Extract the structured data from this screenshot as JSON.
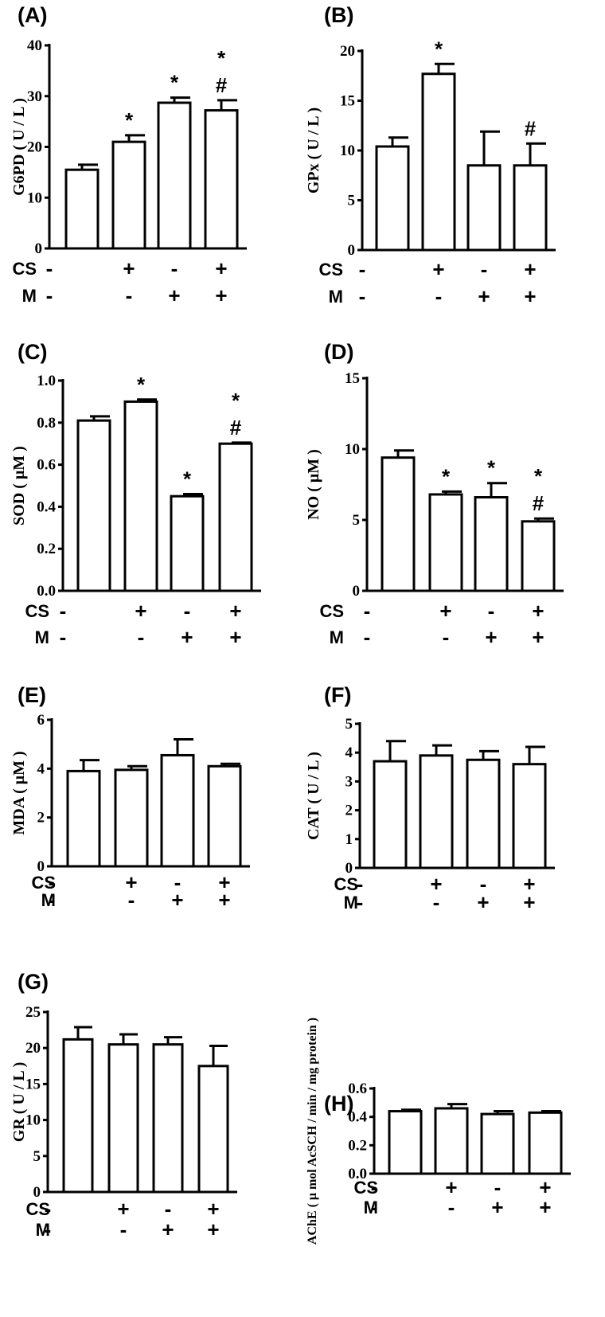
{
  "factor_rows": [
    {
      "name": "CS",
      "signs": [
        "-",
        "+",
        "-",
        "+"
      ]
    },
    {
      "name": "M",
      "signs": [
        "-",
        "-",
        "+",
        "+"
      ]
    }
  ],
  "chart_data": [
    {
      "panel": "(A)",
      "type": "bar",
      "ylabel": "G6PD ( U / L )",
      "ylim": [
        0,
        40
      ],
      "yticks": [
        "0",
        "10",
        "20",
        "30",
        "40"
      ],
      "series": [
        {
          "values": [
            15.5,
            21,
            28.7,
            27.2
          ],
          "errors": [
            1,
            1.3,
            1,
            2
          ]
        }
      ],
      "annotations": [
        [],
        [
          "*"
        ],
        [
          "*"
        ],
        [
          "#",
          "*"
        ]
      ]
    },
    {
      "panel": "(B)",
      "type": "bar",
      "ylabel": "GPx ( U / L )",
      "ylim": [
        0,
        20
      ],
      "yticks": [
        "0",
        "5",
        "10",
        "15",
        "20"
      ],
      "series": [
        {
          "values": [
            10.4,
            17.7,
            8.5,
            8.5
          ],
          "errors": [
            0.9,
            1,
            3.4,
            2.2
          ]
        }
      ],
      "annotations": [
        [],
        [
          "*"
        ],
        [],
        [
          "#"
        ]
      ]
    },
    {
      "panel": "(C)",
      "type": "bar",
      "ylabel": "SOD ( μM )",
      "ylim": [
        0,
        1.0
      ],
      "yticks": [
        "0.0",
        "0.2",
        "0.4",
        "0.6",
        "0.8",
        "1.0"
      ],
      "series": [
        {
          "values": [
            0.81,
            0.9,
            0.45,
            0.7
          ],
          "errors": [
            0.02,
            0.01,
            0.01,
            0.005
          ]
        }
      ],
      "annotations": [
        [],
        [
          "*"
        ],
        [
          "*"
        ],
        [
          "#",
          "*"
        ]
      ]
    },
    {
      "panel": "(D)",
      "type": "bar",
      "ylabel": "NO ( μM )",
      "ylim": [
        0,
        15
      ],
      "yticks": [
        "0",
        "5",
        "10",
        "15"
      ],
      "series": [
        {
          "values": [
            9.4,
            6.8,
            6.6,
            4.9
          ],
          "errors": [
            0.5,
            0.2,
            1,
            0.2
          ]
        }
      ],
      "annotations": [
        [],
        [
          "*"
        ],
        [
          "*"
        ],
        [
          "#",
          "*"
        ]
      ]
    },
    {
      "panel": "(E)",
      "type": "bar",
      "ylabel": "MDA ( μM )",
      "ylim": [
        0,
        6
      ],
      "yticks": [
        "0",
        "2",
        "4",
        "6"
      ],
      "series": [
        {
          "values": [
            3.9,
            3.95,
            4.55,
            4.1
          ],
          "errors": [
            0.45,
            0.15,
            0.65,
            0.1
          ]
        }
      ],
      "annotations": [
        [],
        [],
        [],
        []
      ]
    },
    {
      "panel": "(F)",
      "type": "bar",
      "ylabel": "CAT ( U / L )",
      "ylim": [
        0,
        5
      ],
      "yticks": [
        "0",
        "1",
        "2",
        "3",
        "4",
        "5"
      ],
      "series": [
        {
          "values": [
            3.7,
            3.9,
            3.75,
            3.6
          ],
          "errors": [
            0.7,
            0.35,
            0.3,
            0.6
          ]
        }
      ],
      "annotations": [
        [],
        [],
        [],
        []
      ]
    },
    {
      "panel": "(G)",
      "type": "bar",
      "ylabel": "GR ( U / L )",
      "ylim": [
        0,
        25
      ],
      "yticks": [
        "0",
        "5",
        "10",
        "15",
        "20",
        "25"
      ],
      "series": [
        {
          "values": [
            21.2,
            20.5,
            20.5,
            17.5
          ],
          "errors": [
            1.7,
            1.4,
            1,
            2.8
          ]
        }
      ],
      "annotations": [
        [],
        [],
        [],
        []
      ]
    },
    {
      "panel": "(H)",
      "type": "bar",
      "ylabel": "AChE ( μ mol AcSCH / min / mg protein )",
      "ylim": [
        0,
        0.6
      ],
      "yticks": [
        "0.0",
        "0.2",
        "0.4",
        "0.6"
      ],
      "series": [
        {
          "values": [
            0.44,
            0.46,
            0.42,
            0.43
          ],
          "errors": [
            0.01,
            0.03,
            0.02,
            0.01
          ]
        }
      ],
      "annotations": [
        [],
        [],
        [],
        []
      ]
    }
  ]
}
